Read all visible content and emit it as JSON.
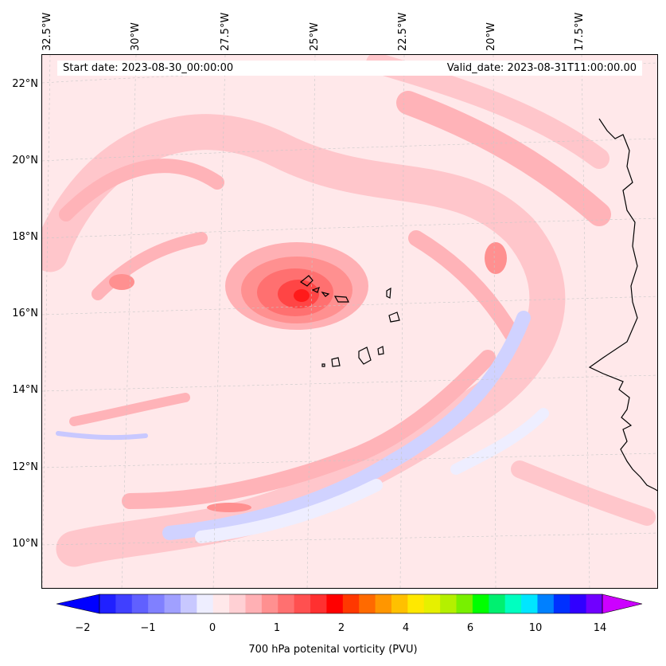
{
  "map": {
    "lon_labels": [
      "32.5°W",
      "30°W",
      "27.5°W",
      "25°W",
      "22.5°W",
      "20°W",
      "17.5°W"
    ],
    "lat_labels": [
      "22°N",
      "20°N",
      "18°N",
      "16°N",
      "14°N",
      "12°N",
      "10°N"
    ],
    "start_date": "Start date: 2023-08-30_00:00:00",
    "valid_date": "Valid_date: 2023-08-31T11:00:00.00",
    "field": "700 hPa potential vorticity",
    "coastline_color": "#000000"
  },
  "colorbar": {
    "label": "700 hPa potenital vorticity (PVU)",
    "tick_labels": [
      "−2",
      "−1",
      "0",
      "1",
      "2",
      "4",
      "6",
      "10",
      "14"
    ],
    "under_color": "#0000ff",
    "over_color": "#cc00ff",
    "colors": [
      "#2020ff",
      "#4040ff",
      "#6060ff",
      "#8080ff",
      "#a0a0ff",
      "#c8c8ff",
      "#eeeeff",
      "#ffe8ea",
      "#ffd0d4",
      "#ffb0b4",
      "#ff9090",
      "#ff7070",
      "#ff5050",
      "#ff3030",
      "#ff0000",
      "#ff3800",
      "#ff6a00",
      "#ff9600",
      "#ffc000",
      "#ffe800",
      "#e6f000",
      "#b4f000",
      "#78f000",
      "#00ff00",
      "#00f070",
      "#00ffc0",
      "#00e6ff",
      "#0080ff",
      "#0030ff",
      "#3000ff",
      "#7000ff"
    ]
  }
}
